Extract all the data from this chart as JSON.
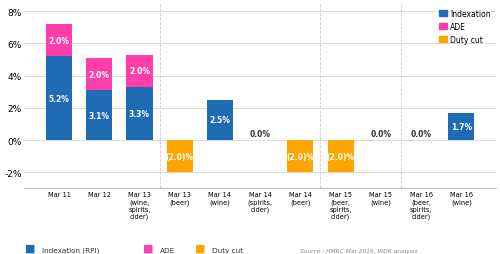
{
  "categories": [
    "Mar 11",
    "Mar 12",
    "Mar 13\n(wine,\nspirits,\ncider)",
    "Mar 13\n(beer)",
    "Mar 14\n(wine)",
    "Mar 14\n(spirits,\ncider)",
    "Mar 14\n(beer)",
    "Mar 15\n(beer,\nspirits,\ncider)",
    "Mar 15\n(wine)",
    "Mar 16\n(beer,\nspirits,\ncider)",
    "Mar 16\n(wine)"
  ],
  "indexation": [
    5.2,
    3.1,
    3.3,
    0.0,
    2.5,
    0.0,
    0.0,
    0.0,
    0.0,
    0.0,
    1.7
  ],
  "ade": [
    2.0,
    2.0,
    2.0,
    0.0,
    0.0,
    0.0,
    0.0,
    0.0,
    0.0,
    0.0,
    0.0
  ],
  "duty_cut": [
    0.0,
    0.0,
    0.0,
    -2.0,
    0.0,
    0.0,
    -2.0,
    -2.0,
    0.0,
    0.0,
    0.0
  ],
  "indexation_labels": [
    "5.2%",
    "3.1%",
    "3.3%",
    "",
    "2.5%",
    "0.0%",
    "",
    "",
    "0.0%",
    "0.0%",
    "1.7%"
  ],
  "ade_labels": [
    "2.0%",
    "2.0%",
    "2.0%",
    "",
    "",
    "",
    "",
    "",
    "",
    "",
    ""
  ],
  "duty_cut_labels": [
    "",
    "",
    "",
    "(2.0)%",
    "",
    "",
    "(2.0)%",
    "(2.0)%",
    "",
    "",
    ""
  ],
  "color_indexation": "#1F6CB5",
  "color_ade": "#FF3EAA",
  "color_duty_cut": "#FFA500",
  "ylim_min": -3,
  "ylim_max": 8.5,
  "yticks": [
    -2,
    0,
    2,
    4,
    6,
    8
  ],
  "ytick_labels": [
    "-2%",
    "0%",
    "2%",
    "4%",
    "6%",
    "8%"
  ],
  "legend_items": [
    "Indexation",
    "ADE",
    "Duty cut"
  ],
  "legend_labels_bottom": [
    "Indexation (RPI)",
    "ADE",
    "Duty cut"
  ],
  "source_text": "Source : HMRC Mar 2016, WDR analysis",
  "background_color": "#FFFFFF",
  "grid_color": "#CCCCCC"
}
